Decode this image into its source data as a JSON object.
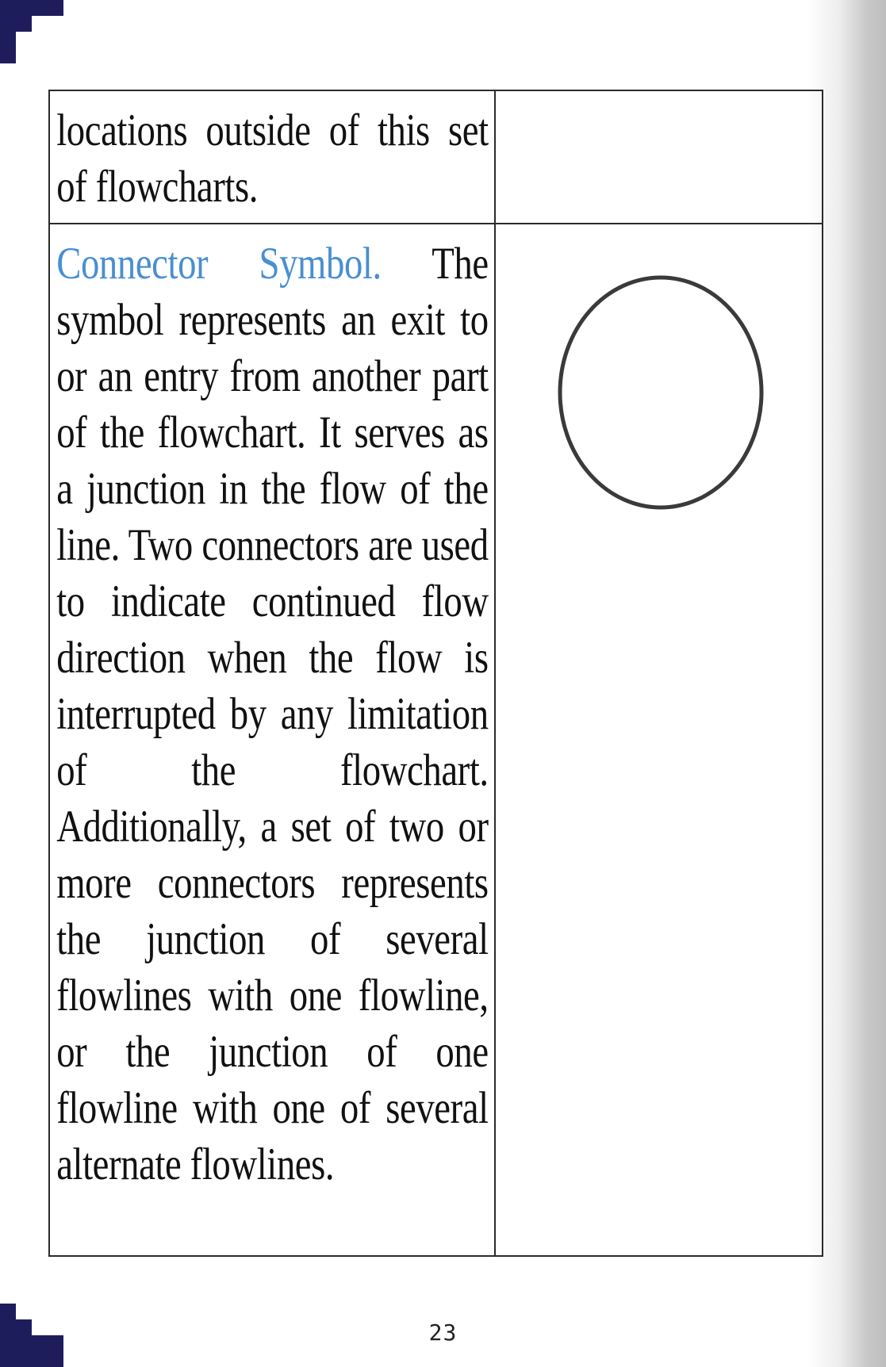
{
  "table": {
    "row1": {
      "text": "locations outside of this set of flowcharts."
    },
    "row2": {
      "term": "Connector Symbol.",
      "text": " The symbol represents an exit to or an entry from another part of the flowchart. It serves as a junction in the flow of the line. Two connectors are used to indicate continued flow direction when the flow is interrupted by any limitation of the flowchart. Additionally, a set of two or more connectors represents the junction of several flowlines with one flowline, or the junction of one flowline with one of several alternate flowlines.",
      "symbol_icon": "circle-connector-icon"
    }
  },
  "footer": {
    "page_number": "23"
  },
  "colors": {
    "term": "#4a8fd0",
    "ornament": "#1e1d5c"
  }
}
